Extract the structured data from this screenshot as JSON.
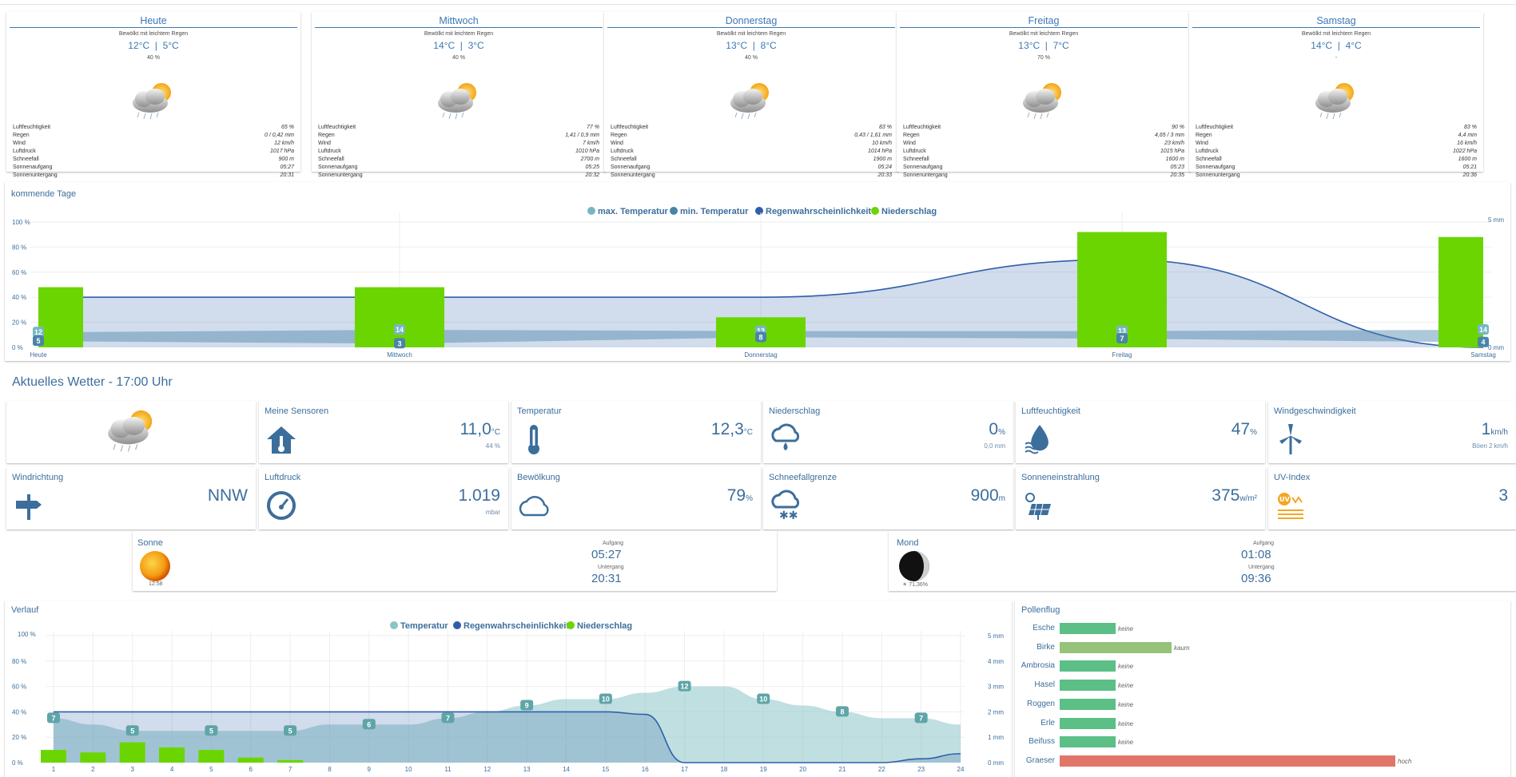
{
  "forecast": [
    {
      "day": "Heute",
      "desc": "Bewölkt mit leichtem Regen",
      "temp": "12°C  |  5°C",
      "rain_prob": "40 %",
      "rows": [
        [
          "Luftfeuchtigkeit",
          "65 %"
        ],
        [
          "Regen",
          "0 / 0,42 mm"
        ],
        [
          "Wind",
          "12 km/h"
        ],
        [
          "Luftdruck",
          "1017 hPa"
        ],
        [
          "Schneefall",
          "900 m"
        ],
        [
          "Sonnenaufgang",
          "05:27"
        ],
        [
          "Sonnenuntergang",
          "20:31"
        ]
      ]
    },
    {
      "day": "Mittwoch",
      "desc": "Bewölkt mit leichtem Regen",
      "temp": "14°C  |  3°C",
      "rain_prob": "40 %",
      "rows": [
        [
          "Luftfeuchtigkeit",
          "77 %"
        ],
        [
          "Regen",
          "1,41 / 0,9 mm"
        ],
        [
          "Wind",
          "7 km/h"
        ],
        [
          "Luftdruck",
          "1010 hPa"
        ],
        [
          "Schneefall",
          "2700 m"
        ],
        [
          "Sonnenaufgang",
          "05:25"
        ],
        [
          "Sonnenuntergang",
          "20:32"
        ]
      ]
    },
    {
      "day": "Donnerstag",
      "desc": "Bewölkt mit leichtem Regen",
      "temp": "13°C  |  8°C",
      "rain_prob": "40 %",
      "rows": [
        [
          "Luftfeuchtigkeit",
          "83 %"
        ],
        [
          "Regen",
          "0,43 / 1,61 mm"
        ],
        [
          "Wind",
          "10 km/h"
        ],
        [
          "Luftdruck",
          "1014 hPa"
        ],
        [
          "Schneefall",
          "1900 m"
        ],
        [
          "Sonnenaufgang",
          "05:24"
        ],
        [
          "Sonnenuntergang",
          "20:33"
        ]
      ]
    },
    {
      "day": "Freitag",
      "desc": "Bewölkt mit leichtem Regen",
      "temp": "13°C  |  7°C",
      "rain_prob": "70 %",
      "rows": [
        [
          "Luftfeuchtigkeit",
          "90 %"
        ],
        [
          "Regen",
          "4,65 / 3 mm"
        ],
        [
          "Wind",
          "23 km/h"
        ],
        [
          "Luftdruck",
          "1015 hPa"
        ],
        [
          "Schneefall",
          "1600 m"
        ],
        [
          "Sonnenaufgang",
          "05:23"
        ],
        [
          "Sonnenuntergang",
          "20:35"
        ]
      ]
    },
    {
      "day": "Samstag",
      "desc": "Bewölkt mit leichtem Regen",
      "temp": "14°C  |  4°C",
      "rain_prob": "-",
      "rows": [
        [
          "Luftfeuchtigkeit",
          "83 %"
        ],
        [
          "Regen",
          "4,4 mm"
        ],
        [
          "Wind",
          "16 km/h"
        ],
        [
          "Luftdruck",
          "1022 hPa"
        ],
        [
          "Schneefall",
          "1600 m"
        ],
        [
          "Sonnenaufgang",
          "05:21"
        ],
        [
          "Sonnenuntergang",
          "20:36"
        ]
      ]
    }
  ],
  "upcoming": {
    "title": "kommende Tage",
    "legend": [
      "max. Temperatur",
      "min. Temperatur",
      "Regenwahrscheinlichkeit",
      "Niederschlag"
    ]
  },
  "current": {
    "title": "Aktuelles Wetter - 17:00 Uhr",
    "tiles": [
      {
        "label": "Meine Sensoren",
        "value": "11,0",
        "unit": "°C",
        "sub": "44 %",
        "icon": "house-thermometer-icon"
      },
      {
        "label": "Temperatur",
        "value": "12,3",
        "unit": "°C",
        "sub": "",
        "icon": "thermometer-icon"
      },
      {
        "label": "Niederschlag",
        "value": "0",
        "unit": "%",
        "sub": "0,0 mm",
        "icon": "rain-cloud-icon"
      },
      {
        "label": "Luftfeuchtigkeit",
        "value": "47",
        "unit": "%",
        "sub": "",
        "icon": "humidity-drop-icon"
      },
      {
        "label": "Windgeschwindigkeit",
        "value": "1",
        "unit": "km/h",
        "sub": "Böen 2 km/h",
        "icon": "wind-turbine-icon"
      },
      {
        "label": "Windrichtung",
        "value": "NNW",
        "unit": "",
        "sub": "",
        "icon": "signpost-icon"
      },
      {
        "label": "Luftdruck",
        "value": "1.019",
        "unit": "",
        "sub": "mbar",
        "icon": "gauge-icon"
      },
      {
        "label": "Bewölkung",
        "value": "79",
        "unit": "%",
        "sub": "",
        "icon": "cloud-icon"
      },
      {
        "label": "Schneefallgrenze",
        "value": "900",
        "unit": "m",
        "sub": "",
        "icon": "snow-cloud-icon"
      },
      {
        "label": "Sonneneinstrahlung",
        "value": "375",
        "unit": "w/m²",
        "sub": "",
        "icon": "solar-panel-icon"
      },
      {
        "label": "UV-Index",
        "value": "3",
        "unit": "",
        "sub": "",
        "icon": "uv-icon"
      }
    ]
  },
  "sun": {
    "title": "Sonne",
    "noon": "12:58",
    "rise_label": "Aufgang",
    "rise": "05:27",
    "set_label": "Untergang",
    "set": "20:31"
  },
  "moon": {
    "title": "Mond",
    "phase": "71,36%",
    "rise_label": "Aufgang",
    "rise": "01:08",
    "set_label": "Untergang",
    "set": "09:36"
  },
  "history": {
    "title": "Verlauf",
    "legend": [
      "Temperatur",
      "Regenwahrscheinlichkeit",
      "Niederschlag"
    ]
  },
  "pollen": {
    "title": "Pollenflug",
    "items": [
      {
        "name": "Esche",
        "level": "keine",
        "value": 1,
        "color": "#5bbf86"
      },
      {
        "name": "Birke",
        "level": "kaum",
        "value": 2,
        "color": "#96c27a"
      },
      {
        "name": "Ambrosia",
        "level": "keine",
        "value": 1,
        "color": "#5bbf86"
      },
      {
        "name": "Hasel",
        "level": "keine",
        "value": 1,
        "color": "#5bbf86"
      },
      {
        "name": "Roggen",
        "level": "keine",
        "value": 1,
        "color": "#5bbf86"
      },
      {
        "name": "Erle",
        "level": "keine",
        "value": 1,
        "color": "#5bbf86"
      },
      {
        "name": "Beifuss",
        "level": "keine",
        "value": 1,
        "color": "#5bbf86"
      },
      {
        "name": "Graeser",
        "level": "hoch",
        "value": 6,
        "color": "#e2756a"
      }
    ],
    "max": 6
  },
  "chart_data": [
    {
      "type": "bar",
      "categories": [
        "Heute",
        "Mittwoch",
        "Donnerstag",
        "Freitag",
        "Samstag"
      ],
      "series": [
        {
          "name": "max. Temperatur",
          "values": [
            12,
            14,
            13,
            13,
            14
          ]
        },
        {
          "name": "min. Temperatur",
          "values": [
            5,
            3,
            8,
            7,
            4
          ]
        },
        {
          "name": "Regenwahrscheinlichkeit",
          "values": [
            40,
            40,
            40,
            70,
            0
          ]
        },
        {
          "name": "Niederschlag",
          "values": [
            2.4,
            2.4,
            1.2,
            4.6,
            4.4
          ]
        }
      ],
      "yticks_left": [
        "0 %",
        "20 %",
        "40 %",
        "60 %",
        "80 %",
        "100 %"
      ],
      "yticks_right": [
        "0 mm",
        "5 mm"
      ],
      "ylim_left": [
        0,
        100
      ],
      "ylim_right": [
        0,
        5
      ],
      "max_labels": [
        "12",
        "14",
        "13",
        "13",
        "14"
      ],
      "min_labels": [
        "5",
        "3",
        "8",
        "7",
        "4"
      ],
      "colors": {
        "max": "#77b7c2",
        "min": "#4a85a8",
        "prob": "#2f5faa",
        "rain": "#6bd502"
      },
      "legend": "top"
    },
    {
      "type": "line",
      "x": [
        1,
        2,
        3,
        4,
        5,
        6,
        7,
        8,
        9,
        10,
        11,
        12,
        13,
        14,
        15,
        16,
        17,
        18,
        19,
        20,
        21,
        22,
        23,
        24
      ],
      "series": [
        {
          "name": "Temperatur",
          "values": [
            7,
            6,
            5,
            5,
            5,
            5,
            5,
            6,
            6,
            6,
            7,
            8,
            9,
            10,
            10,
            11,
            12,
            12,
            10,
            9,
            8,
            7,
            7,
            6
          ]
        },
        {
          "name": "Regenwahrscheinlichkeit",
          "values": [
            40,
            40,
            40,
            40,
            40,
            40,
            40,
            40,
            40,
            40,
            40,
            40,
            40,
            40,
            40,
            38,
            0,
            0,
            0,
            0,
            0,
            0,
            3,
            7
          ]
        },
        {
          "name": "Niederschlag",
          "values": [
            0.5,
            0.4,
            0.8,
            0.6,
            0.5,
            0.2,
            0.1,
            0,
            0,
            0,
            0,
            0,
            0,
            0,
            0,
            0,
            0,
            0,
            0,
            0,
            0,
            0,
            0,
            0
          ]
        }
      ],
      "temp_labels": [
        {
          "x": 1,
          "t": "7"
        },
        {
          "x": 3,
          "t": "5"
        },
        {
          "x": 5,
          "t": "5"
        },
        {
          "x": 7,
          "t": "5"
        },
        {
          "x": 9,
          "t": "6"
        },
        {
          "x": 11,
          "t": "7"
        },
        {
          "x": 13,
          "t": "9"
        },
        {
          "x": 15,
          "t": "10"
        },
        {
          "x": 17,
          "t": "12"
        },
        {
          "x": 19,
          "t": "10"
        },
        {
          "x": 21,
          "t": "8"
        },
        {
          "x": 23,
          "t": "7"
        }
      ],
      "yticks_left": [
        "0 %",
        "20 %",
        "40 %",
        "60 %",
        "80 %",
        "100 %"
      ],
      "yticks_right": [
        "0 mm",
        "1 mm",
        "2 mm",
        "3 mm",
        "4 mm",
        "5 mm"
      ],
      "ylim_left": [
        0,
        100
      ],
      "ylim_right": [
        0,
        5
      ],
      "colors": {
        "temp": "#8cc4c6",
        "prob": "#2f5faa",
        "rain": "#6bd502"
      },
      "legend": "top"
    }
  ]
}
